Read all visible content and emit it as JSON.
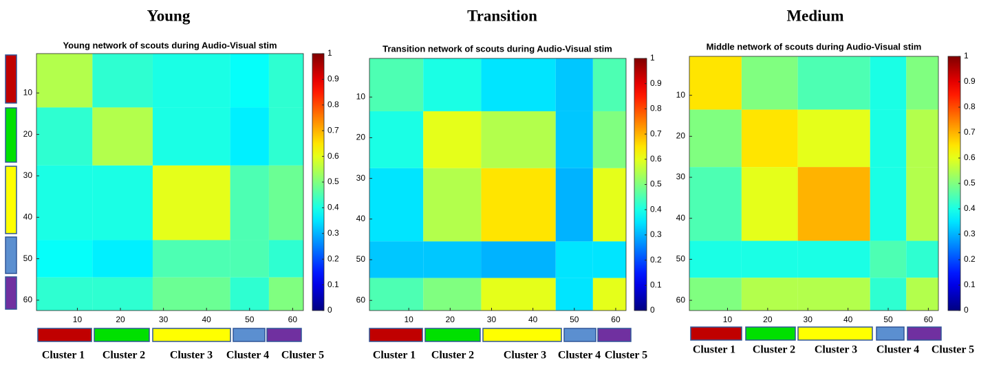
{
  "chart_data": [
    {
      "type": "heatmap",
      "heading": "Young",
      "title": "Young network of scouts during Audio-Visual stim",
      "bins": [
        0.5,
        13.5,
        27.5,
        45.5,
        54.5,
        62.5
      ],
      "z": [
        [
          0.55,
          0.42,
          0.4,
          0.38,
          0.42
        ],
        [
          0.42,
          0.55,
          0.4,
          0.36,
          0.42
        ],
        [
          0.4,
          0.4,
          0.6,
          0.45,
          0.48
        ],
        [
          0.38,
          0.36,
          0.45,
          0.45,
          0.42
        ],
        [
          0.42,
          0.42,
          0.48,
          0.42,
          0.5
        ]
      ],
      "xlim": [
        0.5,
        62.5
      ],
      "ylim": [
        0.5,
        62.5
      ],
      "ydir": "reverse",
      "xticks": [
        10,
        20,
        30,
        40,
        50,
        60
      ],
      "yticks": [
        10,
        20,
        30,
        40,
        50,
        60
      ],
      "clim": [
        0,
        1
      ],
      "cticks": [
        0,
        0.1,
        0.2,
        0.3,
        0.4,
        0.5,
        0.6,
        0.7,
        0.8,
        0.9,
        1
      ],
      "colormap": "jet",
      "clusters": [
        {
          "name": "Cluster 1",
          "color": "#c00000"
        },
        {
          "name": "Cluster 2",
          "color": "#00e000"
        },
        {
          "name": "Cluster 3",
          "color": "#ffff00"
        },
        {
          "name": "Cluster 4",
          "color": "#5b8fd0"
        },
        {
          "name": "Cluster 5",
          "color": "#7030a0"
        }
      ]
    },
    {
      "type": "heatmap",
      "heading": "Transition",
      "title": "Transition network of scouts during Audio-Visual stim",
      "bins": [
        0.5,
        13.5,
        27.5,
        45.5,
        54.5,
        62.5
      ],
      "z": [
        [
          0.45,
          0.4,
          0.35,
          0.32,
          0.45
        ],
        [
          0.4,
          0.6,
          0.55,
          0.32,
          0.5
        ],
        [
          0.35,
          0.55,
          0.65,
          0.3,
          0.6
        ],
        [
          0.32,
          0.32,
          0.3,
          0.35,
          0.35
        ],
        [
          0.45,
          0.5,
          0.6,
          0.35,
          0.6
        ]
      ],
      "xlim": [
        0.5,
        62.5
      ],
      "ylim": [
        0.5,
        62.5
      ],
      "ydir": "reverse",
      "xticks": [
        10,
        20,
        30,
        40,
        50,
        60
      ],
      "yticks": [
        10,
        20,
        30,
        40,
        50,
        60
      ],
      "clim": [
        0,
        1
      ],
      "cticks": [
        0,
        0.1,
        0.2,
        0.3,
        0.4,
        0.5,
        0.6,
        0.7,
        0.8,
        0.9,
        1
      ],
      "colormap": "jet",
      "clusters": [
        {
          "name": "Cluster 1",
          "color": "#c00000"
        },
        {
          "name": "Cluster 2",
          "color": "#00e000"
        },
        {
          "name": "Cluster 3",
          "color": "#ffff00"
        },
        {
          "name": "Cluster 4",
          "color": "#5b8fd0"
        },
        {
          "name": "Cluster 5",
          "color": "#7030a0"
        }
      ]
    },
    {
      "type": "heatmap",
      "heading": "Medium",
      "title": "Middle network of scouts during Audio-Visual stim",
      "bins": [
        0.5,
        13.5,
        27.5,
        45.5,
        54.5,
        62.5
      ],
      "z": [
        [
          0.65,
          0.5,
          0.45,
          0.4,
          0.5
        ],
        [
          0.5,
          0.65,
          0.6,
          0.4,
          0.55
        ],
        [
          0.45,
          0.6,
          0.7,
          0.4,
          0.55
        ],
        [
          0.4,
          0.4,
          0.4,
          0.45,
          0.42
        ],
        [
          0.5,
          0.55,
          0.55,
          0.42,
          0.55
        ]
      ],
      "xlim": [
        0.5,
        62.5
      ],
      "ylim": [
        0.5,
        62.5
      ],
      "ydir": "reverse",
      "xticks": [
        10,
        20,
        30,
        40,
        50,
        60
      ],
      "yticks": [
        10,
        20,
        30,
        40,
        50,
        60
      ],
      "clim": [
        0,
        1
      ],
      "cticks": [
        0,
        0.1,
        0.2,
        0.3,
        0.4,
        0.5,
        0.6,
        0.7,
        0.8,
        0.9,
        1
      ],
      "colormap": "jet",
      "clusters": [
        {
          "name": "Cluster 1",
          "color": "#c00000"
        },
        {
          "name": "Cluster 2",
          "color": "#00e000"
        },
        {
          "name": "Cluster 3",
          "color": "#ffff00"
        },
        {
          "name": "Cluster 4",
          "color": "#5b8fd0"
        },
        {
          "name": "Cluster 5",
          "color": "#7030a0"
        }
      ]
    }
  ]
}
